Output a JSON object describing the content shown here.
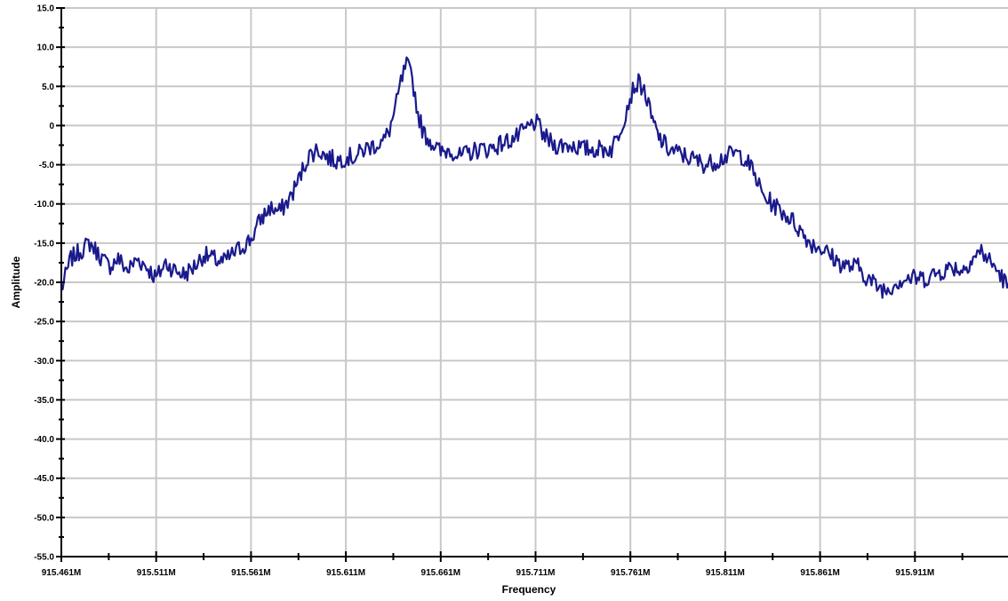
{
  "chart_data": {
    "type": "line",
    "title": "",
    "xlabel": "Frequency",
    "ylabel": "Amplitude",
    "xlim": [
      915.461,
      915.9725
    ],
    "ylim": [
      -55.0,
      15.0
    ],
    "grid": true,
    "legend": "none",
    "x_ticks": [
      915.461,
      915.511,
      915.561,
      915.611,
      915.661,
      915.711,
      915.761,
      915.811,
      915.861,
      915.911
    ],
    "x_tick_labels": [
      "915.461M",
      "915.511M",
      "915.561M",
      "915.611M",
      "915.661M",
      "915.711M",
      "915.761M",
      "915.811M",
      "915.861M",
      "915.911M"
    ],
    "y_ticks": [
      15,
      10,
      5,
      0,
      -5,
      -10,
      -15,
      -20,
      -25,
      -30,
      -35,
      -40,
      -45,
      -50,
      -55
    ],
    "y_tick_labels": [
      "15.0",
      "10.0",
      "5.0",
      "0",
      "-5.0",
      "-10.0",
      "-15.0",
      "-20.0",
      "-25.0",
      "-30.0",
      "-35.0",
      "-40.0",
      "-45.0",
      "-50.0",
      "-55.0"
    ],
    "colors": {
      "line": "#1a1a8c",
      "grid": "#c8c8c8",
      "axis": "#000000"
    },
    "series": [
      {
        "x": [
          915.461,
          915.466,
          915.471,
          915.476,
          915.481,
          915.486,
          915.491,
          915.496,
          915.501,
          915.506,
          915.511,
          915.516,
          915.521,
          915.526,
          915.531,
          915.536,
          915.541,
          915.546,
          915.551,
          915.556,
          915.561,
          915.566,
          915.571,
          915.576,
          915.581,
          915.586,
          915.591,
          915.596,
          915.601,
          915.606,
          915.611,
          915.616,
          915.621,
          915.626,
          915.631,
          915.634,
          915.637,
          915.64,
          915.643,
          915.646,
          915.649,
          915.652,
          915.656,
          915.661,
          915.666,
          915.671,
          915.676,
          915.681,
          915.686,
          915.691,
          915.696,
          915.701,
          915.706,
          915.711,
          915.716,
          915.721,
          915.726,
          915.731,
          915.736,
          915.741,
          915.746,
          915.751,
          915.754,
          915.757,
          915.76,
          915.763,
          915.766,
          915.769,
          915.772,
          915.776,
          915.781,
          915.786,
          915.791,
          915.796,
          915.801,
          915.806,
          915.811,
          915.816,
          915.821,
          915.826,
          915.831,
          915.836,
          915.841,
          915.846,
          915.851,
          915.856,
          915.861,
          915.866,
          915.871,
          915.876,
          915.881,
          915.886,
          915.891,
          915.896,
          915.901,
          915.906,
          915.911,
          915.916,
          915.921,
          915.926,
          915.931,
          915.936,
          915.941,
          915.946,
          915.951,
          915.956,
          915.961,
          915.966,
          915.9725
        ],
        "y": [
          -21.0,
          -17.0,
          -16.0,
          -15.0,
          -16.5,
          -18.0,
          -17.0,
          -18.5,
          -17.0,
          -18.0,
          -19.5,
          -17.5,
          -18.5,
          -19.0,
          -18.0,
          -16.5,
          -17.0,
          -17.5,
          -16.5,
          -15.5,
          -14.5,
          -12.0,
          -10.5,
          -11.0,
          -9.5,
          -7.0,
          -4.0,
          -3.0,
          -4.0,
          -4.5,
          -4.0,
          -4.0,
          -3.0,
          -2.5,
          -2.0,
          -0.5,
          2.0,
          5.5,
          7.8,
          6.0,
          1.5,
          -1.0,
          -2.0,
          -3.5,
          -3.0,
          -4.0,
          -3.5,
          -3.0,
          -3.0,
          -2.5,
          -2.0,
          -1.5,
          -0.5,
          0.5,
          -1.5,
          -2.5,
          -2.5,
          -2.5,
          -3.0,
          -3.0,
          -3.0,
          -3.0,
          -1.5,
          0.5,
          3.0,
          5.0,
          5.5,
          4.0,
          1.0,
          -1.5,
          -3.0,
          -3.5,
          -4.0,
          -4.5,
          -5.0,
          -4.5,
          -4.0,
          -3.5,
          -4.0,
          -6.0,
          -9.0,
          -10.0,
          -11.0,
          -12.0,
          -13.5,
          -15.0,
          -15.5,
          -16.5,
          -17.5,
          -18.0,
          -18.0,
          -19.5,
          -20.5,
          -21.0,
          -20.0,
          -19.5,
          -19.5,
          -19.5,
          -19.0,
          -18.5,
          -18.0,
          -18.5,
          -17.0,
          -16.0,
          -17.5,
          -19.0,
          -21.0,
          -21.5,
          -22.5
        ]
      }
    ]
  }
}
